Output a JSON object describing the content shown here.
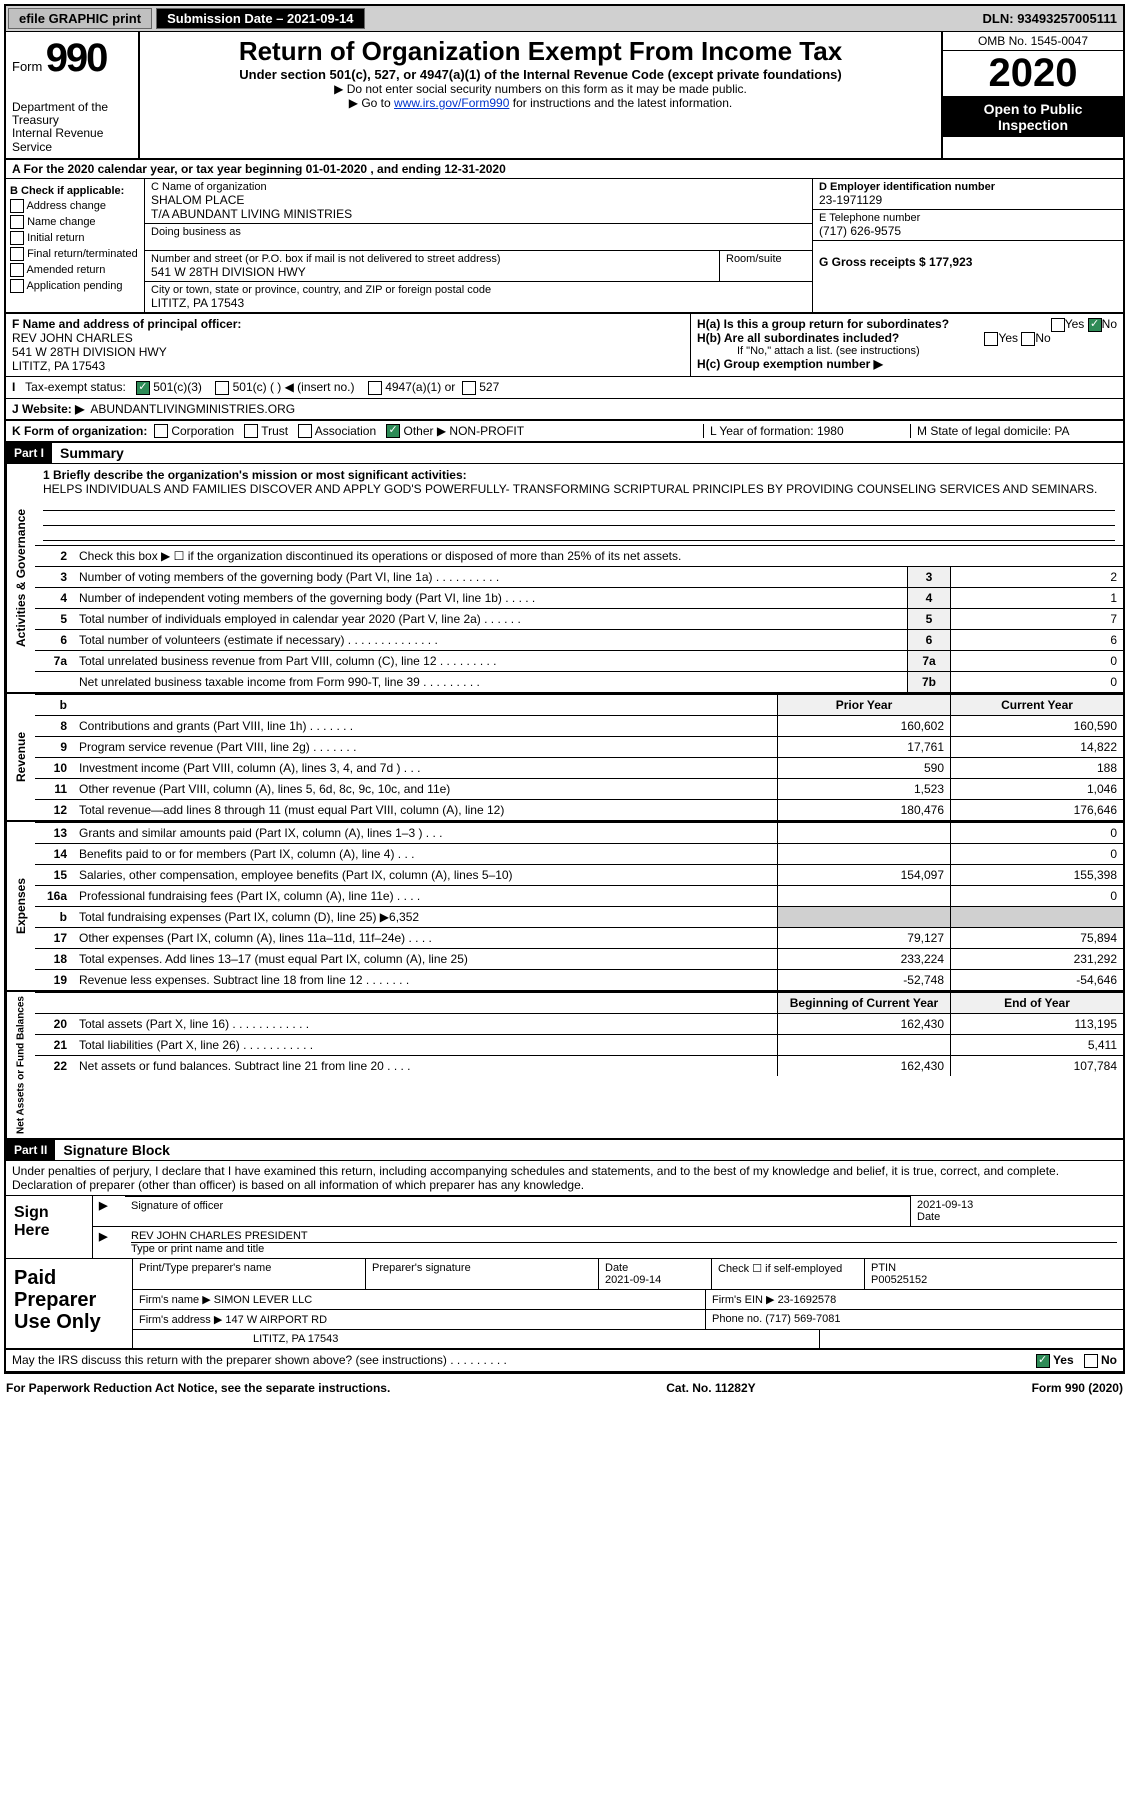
{
  "topbar": {
    "efile": "efile GRAPHIC print",
    "submission_label": "Submission Date – 2021-09-14",
    "dln": "DLN: 93493257005111"
  },
  "header": {
    "form_label": "Form",
    "form_no": "990",
    "dept1": "Department of the Treasury",
    "dept2": "Internal Revenue Service",
    "title": "Return of Organization Exempt From Income Tax",
    "subtitle": "Under section 501(c), 527, or 4947(a)(1) of the Internal Revenue Code (except private foundations)",
    "note1": "▶ Do not enter social security numbers on this form as it may be made public.",
    "note2_pre": "▶ Go to ",
    "note2_link": "www.irs.gov/Form990",
    "note2_post": " for instructions and the latest information.",
    "omb": "OMB No. 1545-0047",
    "year": "2020",
    "open": "Open to Public Inspection"
  },
  "row_a": "A For the 2020 calendar year, or tax year beginning 01-01-2020   , and ending 12-31-2020",
  "col_b": {
    "label": "B Check if applicable:",
    "items": [
      "Address change",
      "Name change",
      "Initial return",
      "Final return/terminated",
      "Amended return",
      "Application pending"
    ]
  },
  "col_c": {
    "name_label": "C Name of organization",
    "name1": "SHALOM PLACE",
    "name2": "T/A ABUNDANT LIVING MINISTRIES",
    "dba_label": "Doing business as",
    "addr_label": "Number and street (or P.O. box if mail is not delivered to street address)",
    "room_label": "Room/suite",
    "addr": "541 W 28TH DIVISION HWY",
    "city_label": "City or town, state or province, country, and ZIP or foreign postal code",
    "city": "LITITZ, PA  17543"
  },
  "col_de": {
    "d_label": "D Employer identification number",
    "d_val": "23-1971129",
    "e_label": "E Telephone number",
    "e_val": "(717) 626-9575",
    "g_label": "G Gross receipts $ 177,923"
  },
  "sect_f": {
    "label": "F Name and address of principal officer:",
    "name": "REV JOHN CHARLES",
    "addr": "541 W 28TH DIVISION HWY",
    "city": "LITITZ, PA  17543"
  },
  "sect_h": {
    "ha": "H(a)  Is this a group return for subordinates?",
    "hb": "H(b)  Are all subordinates included?",
    "hb_note": "If \"No,\" attach a list. (see instructions)",
    "hc": "H(c)  Group exemption number ▶",
    "yes": "Yes",
    "no": "No"
  },
  "tax_exempt": {
    "label": "Tax-exempt status:",
    "o1": "501(c)(3)",
    "o2": "501(c) (  ) ◀ (insert no.)",
    "o3": "4947(a)(1) or",
    "o4": "527"
  },
  "row_j": {
    "label": "J   Website: ▶",
    "val": "ABUNDANTLIVINGMINISTRIES.ORG"
  },
  "row_k": {
    "label": "K Form of organization:",
    "opts": [
      "Corporation",
      "Trust",
      "Association",
      "Other ▶"
    ],
    "other_val": "NON-PROFIT",
    "l": "L Year of formation: 1980",
    "m": "M State of legal domicile: PA"
  },
  "part1": {
    "hdr": "Part I",
    "title": "Summary",
    "q1_label": "1  Briefly describe the organization's mission or most significant activities:",
    "q1_text": "HELPS INDIVIDUALS AND FAMILIES DISCOVER AND APPLY GOD'S POWERFULLY- TRANSFORMING SCRIPTURAL PRINCIPLES BY PROVIDING COUNSELING SERVICES AND SEMINARS.",
    "q2": "Check this box ▶ ☐  if the organization discontinued its operations or disposed of more than 25% of its net assets.",
    "lines_gov": [
      {
        "n": "3",
        "t": "Number of voting members of the governing body (Part VI, line 1a)  .   .   .   .   .   .   .   .   .   .",
        "b": "3",
        "v": "2"
      },
      {
        "n": "4",
        "t": "Number of independent voting members of the governing body (Part VI, line 1b)  .   .   .   .   .",
        "b": "4",
        "v": "1"
      },
      {
        "n": "5",
        "t": "Total number of individuals employed in calendar year 2020 (Part V, line 2a)  .   .   .   .   .   .",
        "b": "5",
        "v": "7"
      },
      {
        "n": "6",
        "t": "Total number of volunteers (estimate if necessary)   .   .   .   .   .   .   .   .   .   .   .   .   .   .",
        "b": "6",
        "v": "6"
      },
      {
        "n": "7a",
        "t": "Total unrelated business revenue from Part VIII, column (C), line 12  .   .   .   .   .   .   .   .   .",
        "b": "7a",
        "v": "0"
      },
      {
        "n": "",
        "t": "Net unrelated business taxable income from Form 990-T, line 39   .   .   .   .   .   .   .   .   .",
        "b": "7b",
        "v": "0"
      }
    ],
    "py_hdr": "Prior Year",
    "cy_hdr": "Current Year",
    "lines_rev": [
      {
        "n": "8",
        "t": "Contributions and grants (Part VIII, line 1h)  .    .    .    .    .    .    .",
        "py": "160,602",
        "cy": "160,590"
      },
      {
        "n": "9",
        "t": "Program service revenue (Part VIII, line 2g)  .    .    .    .    .    .    .",
        "py": "17,761",
        "cy": "14,822"
      },
      {
        "n": "10",
        "t": "Investment income (Part VIII, column (A), lines 3, 4, and 7d )   .    .    .",
        "py": "590",
        "cy": "188"
      },
      {
        "n": "11",
        "t": "Other revenue (Part VIII, column (A), lines 5, 6d, 8c, 9c, 10c, and 11e)",
        "py": "1,523",
        "cy": "1,046"
      },
      {
        "n": "12",
        "t": "Total revenue—add lines 8 through 11 (must equal Part VIII, column (A), line 12)",
        "py": "180,476",
        "cy": "176,646"
      }
    ],
    "lines_exp": [
      {
        "n": "13",
        "t": "Grants and similar amounts paid (Part IX, column (A), lines 1–3 )  .    .    .",
        "py": "",
        "cy": "0"
      },
      {
        "n": "14",
        "t": "Benefits paid to or for members (Part IX, column (A), line 4)  .    .    .",
        "py": "",
        "cy": "0"
      },
      {
        "n": "15",
        "t": "Salaries, other compensation, employee benefits (Part IX, column (A), lines 5–10)",
        "py": "154,097",
        "cy": "155,398"
      },
      {
        "n": "16a",
        "t": "Professional fundraising fees (Part IX, column (A), line 11e)  .    .    .    .",
        "py": "",
        "cy": "0"
      },
      {
        "n": "b",
        "t": "Total fundraising expenses (Part IX, column (D), line 25) ▶6,352",
        "py": "shade",
        "cy": "shade"
      },
      {
        "n": "17",
        "t": "Other expenses (Part IX, column (A), lines 11a–11d, 11f–24e)  .    .    .    .",
        "py": "79,127",
        "cy": "75,894"
      },
      {
        "n": "18",
        "t": "Total expenses. Add lines 13–17 (must equal Part IX, column (A), line 25)",
        "py": "233,224",
        "cy": "231,292"
      },
      {
        "n": "19",
        "t": "Revenue less expenses. Subtract line 18 from line 12 .    .    .    .    .    .    .",
        "py": "-52,748",
        "cy": "-54,646"
      }
    ],
    "boy_hdr": "Beginning of Current Year",
    "eoy_hdr": "End of Year",
    "lines_net": [
      {
        "n": "20",
        "t": "Total assets (Part X, line 16)  .    .    .    .    .    .    .    .    .    .    .    .",
        "py": "162,430",
        "cy": "113,195"
      },
      {
        "n": "21",
        "t": "Total liabilities (Part X, line 26)  .    .    .    .    .    .    .    .    .    .    .",
        "py": "",
        "cy": "5,411"
      },
      {
        "n": "22",
        "t": "Net assets or fund balances. Subtract line 21 from line 20  .    .    .    .",
        "py": "162,430",
        "cy": "107,784"
      }
    ],
    "vtabs": {
      "gov": "Activities & Governance",
      "rev": "Revenue",
      "exp": "Expenses",
      "net": "Net Assets or Fund Balances"
    }
  },
  "part2": {
    "hdr": "Part II",
    "title": "Signature Block",
    "decl": "Under penalties of perjury, I declare that I have examined this return, including accompanying schedules and statements, and to the best of my knowledge and belief, it is true, correct, and complete. Declaration of preparer (other than officer) is based on all information of which preparer has any knowledge."
  },
  "sign": {
    "label": "Sign Here",
    "sig_label": "Signature of officer",
    "date_label": "Date",
    "date_val": "2021-09-13",
    "name": "REV JOHN CHARLES  PRESIDENT",
    "name_label": "Type or print name and title"
  },
  "prep": {
    "label": "Paid Preparer Use Only",
    "h1": "Print/Type preparer's name",
    "h2": "Preparer's signature",
    "h3_label": "Date",
    "h3_val": "2021-09-14",
    "h4": "Check ☐  if self-employed",
    "h5_label": "PTIN",
    "h5_val": "P00525152",
    "firm_label": "Firm's name    ▶",
    "firm_val": "SIMON LEVER LLC",
    "ein_label": "Firm's EIN ▶",
    "ein_val": "23-1692578",
    "addr_label": "Firm's address ▶",
    "addr1": "147 W AIRPORT RD",
    "addr2": "LITITZ, PA  17543",
    "phone_label": "Phone no.",
    "phone_val": "(717) 569-7081"
  },
  "discuss": {
    "text": "May the IRS discuss this return with the preparer shown above? (see instructions)   .    .    .    .    .    .    .    .    .",
    "yes": "Yes",
    "no": "No"
  },
  "footer": {
    "left": "For Paperwork Reduction Act Notice, see the separate instructions.",
    "mid": "Cat. No. 11282Y",
    "right": "Form 990 (2020)"
  }
}
